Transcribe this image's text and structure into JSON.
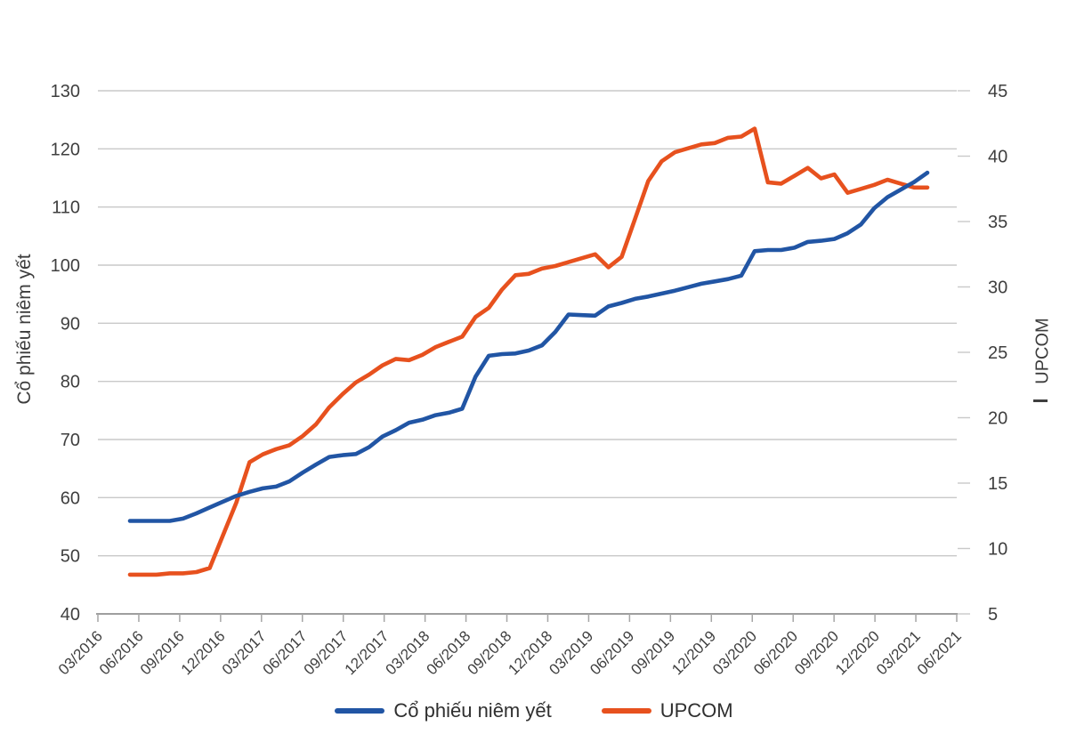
{
  "chart_data": {
    "type": "line",
    "title": "",
    "grid": "horizontal",
    "legend_position": "bottom",
    "x_tick_labels": [
      "03/2016",
      "06/2016",
      "09/2016",
      "12/2016",
      "03/2017",
      "06/2017",
      "09/2017",
      "12/2017",
      "03/2018",
      "06/2018",
      "09/2018",
      "12/2018",
      "03/2019",
      "06/2019",
      "09/2019",
      "12/2019",
      "03/2020",
      "06/2020",
      "09/2020",
      "12/2020",
      "03/2021",
      "06/2021"
    ],
    "months": [
      "03/2016",
      "04/2016",
      "05/2016",
      "06/2016",
      "07/2016",
      "08/2016",
      "09/2016",
      "10/2016",
      "11/2016",
      "12/2016",
      "01/2017",
      "02/2017",
      "03/2017",
      "04/2017",
      "05/2017",
      "06/2017",
      "07/2017",
      "08/2017",
      "09/2017",
      "10/2017",
      "11/2017",
      "12/2017",
      "01/2018",
      "02/2018",
      "03/2018",
      "04/2018",
      "05/2018",
      "06/2018",
      "07/2018",
      "08/2018",
      "09/2018",
      "10/2018",
      "11/2018",
      "12/2018",
      "01/2019",
      "02/2019",
      "03/2019",
      "04/2019",
      "05/2019",
      "06/2019",
      "07/2019",
      "08/2019",
      "09/2019",
      "10/2019",
      "11/2019",
      "12/2019",
      "01/2020",
      "02/2020",
      "03/2020",
      "04/2020",
      "05/2020",
      "06/2020",
      "07/2020",
      "08/2020",
      "09/2020",
      "10/2020",
      "11/2020",
      "12/2020",
      "01/2021",
      "02/2021",
      "03/2021"
    ],
    "left_axis": {
      "title": "Cổ phiếu niêm yết",
      "min": 40,
      "max": 130,
      "step": 10,
      "ticks": [
        40,
        50,
        60,
        70,
        80,
        90,
        100,
        110,
        120,
        130
      ]
    },
    "right_axis": {
      "title": "UPCOM",
      "title_dash": "—",
      "min": 5,
      "max": 45,
      "step": 5,
      "ticks": [
        5,
        10,
        15,
        20,
        25,
        30,
        35,
        40,
        45
      ]
    },
    "series": [
      {
        "name": "Cổ phiếu niêm yết",
        "axis": "left",
        "color": "#2155A4",
        "values": [
          56,
          56,
          56,
          56,
          56.4,
          57.3,
          58.3,
          59.3,
          60.3,
          61,
          61.6,
          61.9,
          62.8,
          64.3,
          65.7,
          67,
          67.3,
          67.5,
          68.7,
          70.5,
          71.6,
          72.9,
          73.4,
          74.2,
          74.6,
          75.3,
          80.8,
          84.4,
          84.7,
          84.8,
          85.3,
          86.2,
          88.5,
          91.5,
          91.4,
          91.3,
          92.9,
          93.5,
          94.2,
          94.6,
          95.1,
          95.6,
          96.2,
          96.8,
          97.2,
          97.6,
          98.2,
          102.4,
          102.6,
          102.6,
          103,
          104,
          104.2,
          104.5,
          105.5,
          107,
          109.8,
          111.7,
          113,
          114.3,
          115.9
        ]
      },
      {
        "name": "UPCOM",
        "axis": "right",
        "color": "#E7511E",
        "values": [
          8,
          8,
          8,
          8.1,
          8.1,
          8.2,
          8.5,
          11,
          13.5,
          16.6,
          17.2,
          17.6,
          17.9,
          18.6,
          19.5,
          20.8,
          21.8,
          22.7,
          23.3,
          24,
          24.5,
          24.4,
          24.8,
          25.4,
          25.8,
          26.2,
          27.7,
          28.4,
          29.8,
          30.9,
          31,
          31.4,
          31.6,
          31.9,
          32.2,
          32.5,
          31.5,
          32.3,
          35.2,
          38.1,
          39.6,
          40.3,
          40.6,
          40.9,
          41,
          41.4,
          41.5,
          42.1,
          38,
          37.9,
          38.5,
          39.1,
          38.3,
          38.6,
          37.2,
          37.5,
          37.8,
          38.2,
          37.9,
          37.6,
          37.6
        ]
      }
    ]
  },
  "colors": {
    "background": "#ffffff",
    "gridline": "#c9c9c9",
    "axis_line": "#9e9e9e",
    "tick": "#a6a6a6",
    "tick_label": "#3f3f3f"
  }
}
